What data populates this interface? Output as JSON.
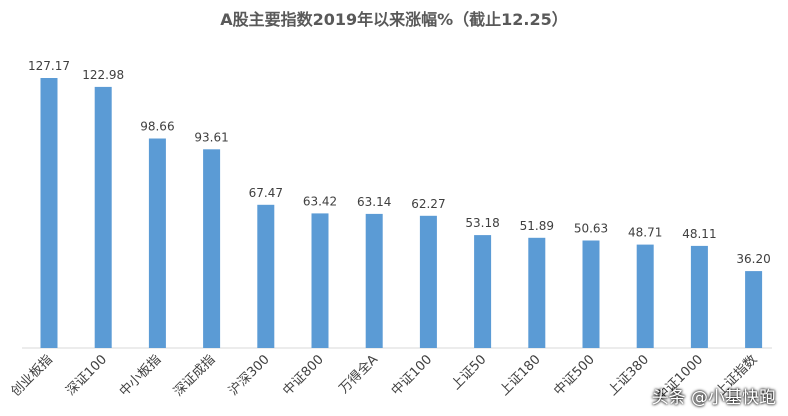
{
  "chart_data": {
    "type": "bar",
    "title": "A股主要指数2019年以来涨幅%（截止12.25）",
    "categories": [
      "创业板指",
      "深证100",
      "中小板指",
      "深证成指",
      "沪深300",
      "中证800",
      "万得全A",
      "中证100",
      "上证50",
      "上证180",
      "中证500",
      "上证380",
      "中证1000",
      "上证指数"
    ],
    "values": [
      127.17,
      122.98,
      98.66,
      93.61,
      67.47,
      63.42,
      63.14,
      62.27,
      53.18,
      51.89,
      50.63,
      48.71,
      48.11,
      36.2
    ],
    "value_labels": [
      "127.17",
      "122.98",
      "98.66",
      "93.61",
      "67.47",
      "63.42",
      "63.14",
      "62.27",
      "53.18",
      "51.89",
      "50.63",
      "48.71",
      "48.11",
      "36.20"
    ],
    "ylim": [
      0,
      140
    ],
    "xlabel": "",
    "ylabel": "",
    "grid": false,
    "bar_color": "#5b9bd5"
  },
  "watermark": "头条 @小基快跑"
}
